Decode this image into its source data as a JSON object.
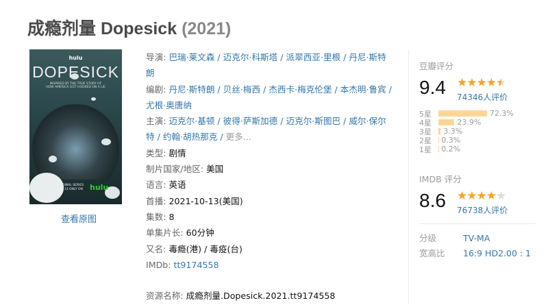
{
  "title": {
    "name": "成瘾剂量 Dopesick",
    "year": "(2021)"
  },
  "poster": {
    "lettering": [
      "hulu",
      "DOPESICK",
      "INSPIRED BY THE TRUE STORY OF HOW AMERICA GOT HOOKED ON A LIE",
      "ORIGINAL SERIES OCT 13 ONLY ON",
      "hulu"
    ]
  },
  "view_original": "查看原图",
  "info": {
    "director_label": "导演",
    "directors": [
      "巴瑞·莱文森",
      "迈克尔·科斯塔",
      "派翠西亚·里根",
      "丹尼·斯特朗"
    ],
    "writer_label": "编剧",
    "writers": [
      "丹尼·斯特朗",
      "贝丝·梅西",
      "杰西卡·梅克伦堡",
      "本杰明·鲁宾",
      "尤根·奥唐纳"
    ],
    "cast_label": "主演",
    "cast": [
      "迈克尔·基顿",
      "彼得·萨斯加德",
      "迈克尔·斯图巴",
      "威尔·保尔特",
      "约翰·胡热那克"
    ],
    "more": "更多...",
    "genre_label": "类型",
    "genre": "剧情",
    "country_label": "制片国家/地区",
    "country": "美国",
    "language_label": "语言",
    "language": "英语",
    "premiere_label": "首播",
    "premiere": "2021-10-13(美国)",
    "episodes_label": "集数",
    "episodes": "8",
    "runtime_label": "单集片长",
    "runtime": "60分钟",
    "aka_label": "又名",
    "aka": "毒瘾(港) / 毒疫(台)",
    "imdb_label": "IMDb",
    "imdb": "tt9174558",
    "resource_label": "资源名称",
    "resource": "成瘾剂量.Dopesick.2021.tt9174558"
  },
  "douban": {
    "label": "豆瓣评分",
    "score": "9.4",
    "stars": 4.5,
    "votes": "74346人评价",
    "breakdown": [
      {
        "label": "5星",
        "percent": 72.3,
        "text": "72.3%"
      },
      {
        "label": "4星",
        "percent": 23.9,
        "text": "23.9%"
      },
      {
        "label": "3星",
        "percent": 3.3,
        "text": "3.3%"
      },
      {
        "label": "2星",
        "percent": 0.3,
        "text": "0.3%"
      },
      {
        "label": "1星",
        "percent": 0.2,
        "text": "0.2%"
      }
    ]
  },
  "imdb_rating": {
    "label": "IMDB 评分",
    "score": "8.6",
    "stars": 4,
    "votes": "76738人评价"
  },
  "meta": [
    {
      "key": "分级",
      "value": "TV-MA"
    },
    {
      "key": "宽高比",
      "value": "16:9 HD2.00 : 1"
    }
  ],
  "colors": {
    "link": "#3377aa",
    "star": "#f8a325",
    "bar": "#ffd596"
  }
}
